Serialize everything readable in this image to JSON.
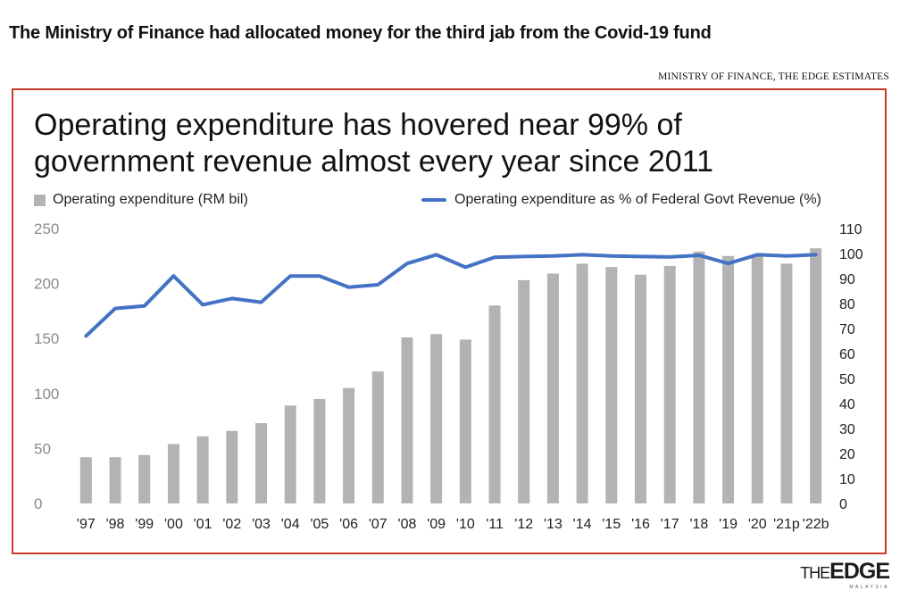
{
  "headline": "The Ministry of Finance had allocated money for the third jab from the Covid-19 fund",
  "source": "MINISTRY OF FINANCE, THE EDGE ESTIMATES",
  "logo": {
    "prefix": "THE",
    "main": "EDGE",
    "sub": "MALAYSIA"
  },
  "chart_data": {
    "type": "bar",
    "title_lines": [
      "Operating expenditure has hovered near 99% of",
      "government revenue almost every year since 2011"
    ],
    "categories": [
      "'97",
      "'98",
      "'99",
      "'00",
      "'01",
      "'02",
      "'03",
      "'04",
      "'05",
      "'06",
      "'07",
      "'08",
      "'09",
      "'10",
      "'11",
      "'12",
      "'13",
      "'14",
      "'15",
      "'16",
      "'17",
      "'18",
      "'19",
      "'20",
      "'21p",
      "'22b"
    ],
    "series": [
      {
        "name": "Operating expenditure (RM bil)",
        "type": "bar",
        "axis": "left",
        "color": "#b3b3b3",
        "values": [
          42,
          42,
          44,
          54,
          61,
          66,
          73,
          89,
          95,
          105,
          120,
          151,
          154,
          149,
          180,
          203,
          209,
          218,
          215,
          208,
          216,
          229,
          225,
          225,
          218,
          232
        ]
      },
      {
        "name": "Operating expenditure as % of Federal Govt Revenue (%)",
        "type": "line",
        "axis": "right",
        "color": "#4472c4",
        "values": [
          67,
          78,
          79,
          91,
          79.5,
          82,
          80.5,
          91,
          91,
          86.5,
          87.5,
          96,
          99.5,
          94.5,
          98.5,
          98.8,
          99,
          99.5,
          99,
          98.8,
          98.6,
          99.3,
          96,
          99.5,
          99,
          99.5
        ]
      }
    ],
    "y_left": {
      "ylim": [
        0,
        250
      ],
      "ticks": [
        0,
        50,
        100,
        150,
        200,
        250
      ]
    },
    "y_right": {
      "ylim": [
        0,
        110
      ],
      "ticks": [
        0,
        10,
        20,
        30,
        40,
        50,
        60,
        70,
        80,
        90,
        100,
        110
      ]
    },
    "grid": false,
    "legend_position": "top"
  }
}
